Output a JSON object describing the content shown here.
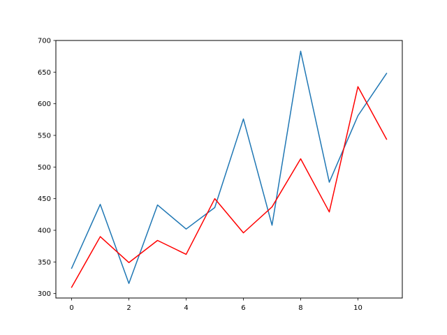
{
  "chart_data": {
    "type": "line",
    "title": "",
    "xlabel": "",
    "ylabel": "",
    "xlim": [
      -0.55,
      11.55
    ],
    "ylim": [
      293,
      700
    ],
    "xticks": [
      0,
      2,
      4,
      6,
      8,
      10
    ],
    "yticks": [
      300,
      350,
      400,
      450,
      500,
      550,
      600,
      650,
      700
    ],
    "grid": false,
    "legend": "none",
    "x": [
      0,
      1,
      2,
      3,
      4,
      5,
      6,
      7,
      8,
      9,
      10,
      11
    ],
    "series": [
      {
        "color": "#1f77b4",
        "values": [
          340,
          441,
          316,
          440,
          402,
          436,
          576,
          408,
          683,
          476,
          581,
          648
        ]
      },
      {
        "color": "#ff0000",
        "values": [
          310,
          390,
          349,
          384,
          362,
          450,
          396,
          437,
          513,
          429,
          627,
          544
        ]
      }
    ]
  }
}
